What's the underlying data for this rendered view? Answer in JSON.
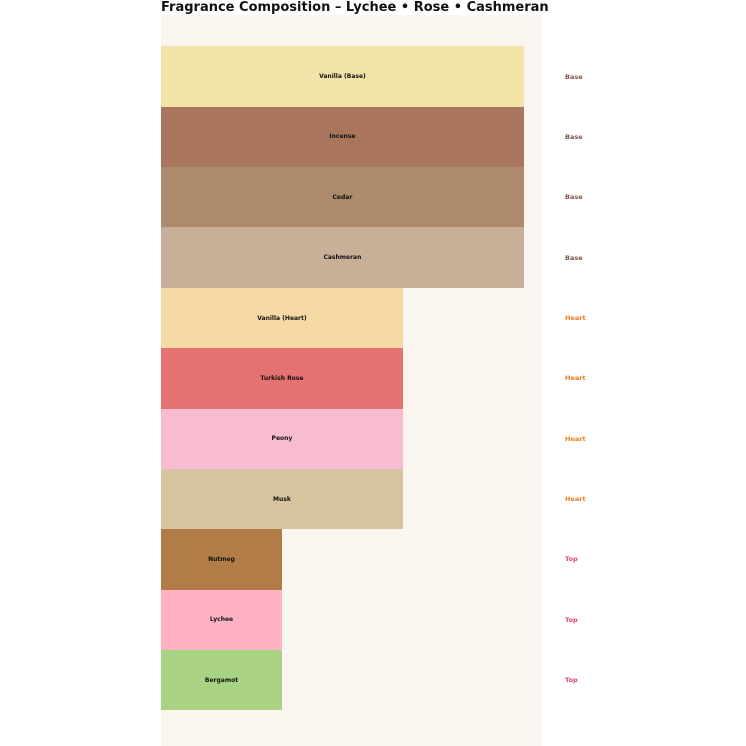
{
  "title": "Fragrance Composition – Lychee • Rose • Cashmeran",
  "colors": {
    "page_bg": "#ffffff",
    "plot_bg": "#faf5ee",
    "title_text": "#111111",
    "bar_label_text": "#111111",
    "tier_label_colors": {
      "Base": "#795548",
      "Heart": "#ef7d1a",
      "Top": "#e8417a"
    }
  },
  "chart_data": {
    "type": "bar",
    "orientation": "horizontal",
    "title": "Fragrance Composition – Lychee • Rose • Cashmeran",
    "categories": [
      "Vanilla (Base)",
      "Incense",
      "Cedar",
      "Cashmeran",
      "Vanilla (Heart)",
      "Turkish Rose",
      "Peony",
      "Musk",
      "Nutmeg",
      "Lychee",
      "Bergamot"
    ],
    "values": [
      3,
      3,
      3,
      3,
      2,
      2,
      2,
      2,
      1,
      1,
      1
    ],
    "tiers": [
      "Base",
      "Base",
      "Base",
      "Base",
      "Heart",
      "Heart",
      "Heart",
      "Heart",
      "Top",
      "Top",
      "Top"
    ],
    "bar_colors": [
      "#f2e3a8",
      "#a9755c",
      "#ae8b6c",
      "#c8b098",
      "#f5d9a4",
      "#e57170",
      "#f8bcd0",
      "#d6c49e",
      "#b17c48",
      "#ffb2c4",
      "#a8d382"
    ],
    "xlabel": "",
    "ylabel": "",
    "xlim": [
      0,
      3.15
    ],
    "grid": false,
    "legend": "none",
    "tier_labels_position": "right-of-plot",
    "bar_value_unit": "relative intensity (Base=3, Heart=2, Top=1)"
  }
}
